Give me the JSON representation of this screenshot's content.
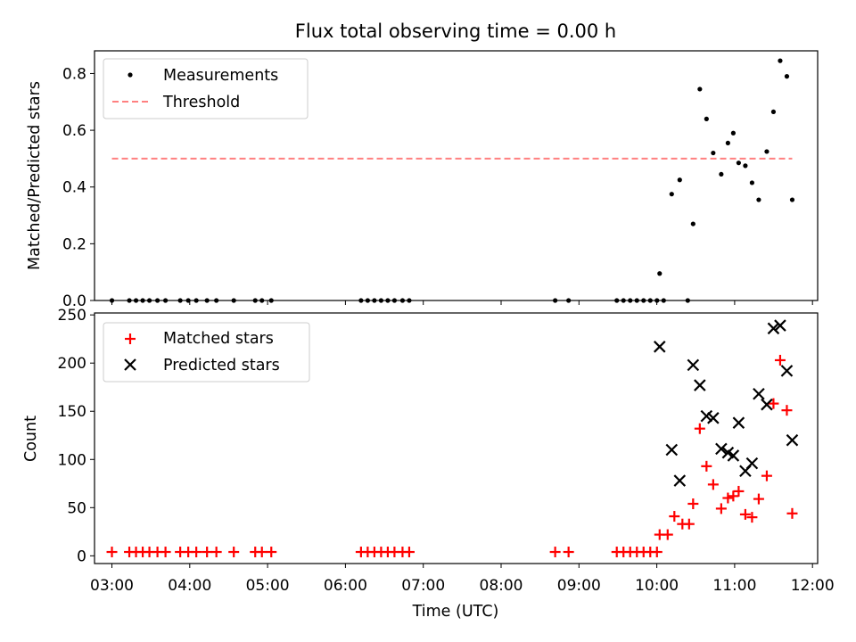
{
  "chart_data": {
    "title": "Flux total observing time = 0.00 h",
    "x": {
      "label": "Time (UTC)",
      "lim": [
        "03:00",
        "12:00"
      ],
      "ticks": [
        "03:00",
        "04:00",
        "05:00",
        "06:00",
        "07:00",
        "08:00",
        "09:00",
        "10:00",
        "11:00",
        "12:00"
      ]
    },
    "panels": [
      {
        "type": "scatter",
        "ylabel": "Matched/Predicted stars",
        "ylim": [
          0,
          0.88
        ],
        "yticks": [
          "0.0",
          "0.2",
          "0.4",
          "0.6",
          "0.8"
        ],
        "legend_position": "top-left",
        "grid": false,
        "series": [
          {
            "name": "Measurements",
            "kind": "dots",
            "color": "#000000",
            "points": [
              [
                "03:13",
                0
              ],
              [
                "03:26",
                0
              ],
              [
                "03:31",
                0
              ],
              [
                "03:36",
                0
              ],
              [
                "03:41",
                0
              ],
              [
                "03:47",
                0
              ],
              [
                "03:53",
                0
              ],
              [
                "04:04",
                0
              ],
              [
                "04:10",
                0
              ],
              [
                "04:16",
                0
              ],
              [
                "04:24",
                0
              ],
              [
                "04:31",
                0
              ],
              [
                "04:44",
                0
              ],
              [
                "05:00",
                0
              ],
              [
                "05:05",
                0
              ],
              [
                "05:12",
                0
              ],
              [
                "06:19",
                0
              ],
              [
                "06:24",
                0
              ],
              [
                "06:29",
                0
              ],
              [
                "06:34",
                0
              ],
              [
                "06:39",
                0
              ],
              [
                "06:44",
                0
              ],
              [
                "06:50",
                0
              ],
              [
                "06:55",
                0
              ],
              [
                "08:44",
                0
              ],
              [
                "08:54",
                0
              ],
              [
                "09:30",
                0
              ],
              [
                "09:35",
                0
              ],
              [
                "09:40",
                0
              ],
              [
                "09:45",
                0
              ],
              [
                "09:50",
                0
              ],
              [
                "09:55",
                0
              ],
              [
                "10:00",
                0
              ],
              [
                "10:05",
                0
              ],
              [
                "10:02",
                0.095
              ],
              [
                "10:11",
                0.375
              ],
              [
                "10:17",
                0.425
              ],
              [
                "10:23",
                0
              ],
              [
                "10:27",
                0.27
              ],
              [
                "10:32",
                0.745
              ],
              [
                "10:37",
                0.64
              ],
              [
                "10:42",
                0.52
              ],
              [
                "10:48",
                0.445
              ],
              [
                "10:53",
                0.555
              ],
              [
                "10:57",
                0.59
              ],
              [
                "11:01",
                0.485
              ],
              [
                "11:06",
                0.475
              ],
              [
                "11:11",
                0.415
              ],
              [
                "11:16",
                0.355
              ],
              [
                "11:22",
                0.525
              ],
              [
                "11:27",
                0.665
              ],
              [
                "11:32",
                0.845
              ],
              [
                "11:37",
                0.79
              ],
              [
                "11:41",
                0.355
              ]
            ]
          },
          {
            "name": "Threshold",
            "kind": "dashed-line",
            "color": "#ff8080",
            "points": [
              [
                "03:13",
                0.5
              ],
              [
                "11:41",
                0.5
              ]
            ]
          }
        ]
      },
      {
        "type": "scatter",
        "ylabel": "Count",
        "ylim": [
          -8,
          252
        ],
        "yticks": [
          "0",
          "50",
          "100",
          "150",
          "200",
          "250"
        ],
        "legend_position": "top-left",
        "grid": false,
        "series": [
          {
            "name": "Matched stars",
            "kind": "plus",
            "color": "#ff0000",
            "points": [
              [
                "03:13",
                4
              ],
              [
                "03:26",
                4
              ],
              [
                "03:31",
                4
              ],
              [
                "03:36",
                4
              ],
              [
                "03:41",
                4
              ],
              [
                "03:47",
                4
              ],
              [
                "03:53",
                4
              ],
              [
                "04:04",
                4
              ],
              [
                "04:10",
                4
              ],
              [
                "04:16",
                4
              ],
              [
                "04:24",
                4
              ],
              [
                "04:31",
                4
              ],
              [
                "04:44",
                4
              ],
              [
                "05:00",
                4
              ],
              [
                "05:05",
                4
              ],
              [
                "05:12",
                4
              ],
              [
                "06:19",
                4
              ],
              [
                "06:24",
                4
              ],
              [
                "06:29",
                4
              ],
              [
                "06:34",
                4
              ],
              [
                "06:39",
                4
              ],
              [
                "06:44",
                4
              ],
              [
                "06:50",
                4
              ],
              [
                "06:55",
                4
              ],
              [
                "08:44",
                4
              ],
              [
                "08:54",
                4
              ],
              [
                "09:30",
                4
              ],
              [
                "09:35",
                4
              ],
              [
                "09:40",
                4
              ],
              [
                "09:45",
                4
              ],
              [
                "09:50",
                4
              ],
              [
                "09:55",
                4
              ],
              [
                "10:00",
                4
              ],
              [
                "10:02",
                22
              ],
              [
                "10:08",
                22
              ],
              [
                "10:13",
                41
              ],
              [
                "10:19",
                33
              ],
              [
                "10:24",
                33
              ],
              [
                "10:27",
                54
              ],
              [
                "10:32",
                132
              ],
              [
                "10:37",
                93
              ],
              [
                "10:42",
                74
              ],
              [
                "10:48",
                49
              ],
              [
                "10:53",
                60
              ],
              [
                "10:57",
                62
              ],
              [
                "11:01",
                67
              ],
              [
                "11:06",
                43
              ],
              [
                "11:11",
                40
              ],
              [
                "11:16",
                59
              ],
              [
                "11:22",
                83
              ],
              [
                "11:27",
                158
              ],
              [
                "11:32",
                203
              ],
              [
                "11:37",
                151
              ],
              [
                "11:41",
                44
              ]
            ]
          },
          {
            "name": "Predicted stars",
            "kind": "x",
            "color": "#000000",
            "points": [
              [
                "10:02",
                217
              ],
              [
                "10:11",
                110
              ],
              [
                "10:17",
                78
              ],
              [
                "10:27",
                198
              ],
              [
                "10:32",
                177
              ],
              [
                "10:37",
                145
              ],
              [
                "10:42",
                143
              ],
              [
                "10:48",
                111
              ],
              [
                "10:53",
                107
              ],
              [
                "10:57",
                104
              ],
              [
                "11:01",
                138
              ],
              [
                "11:06",
                88
              ],
              [
                "11:11",
                96
              ],
              [
                "11:16",
                168
              ],
              [
                "11:22",
                157
              ],
              [
                "11:27",
                236
              ],
              [
                "11:32",
                239
              ],
              [
                "11:37",
                192
              ],
              [
                "11:41",
                120
              ]
            ]
          }
        ]
      }
    ]
  }
}
